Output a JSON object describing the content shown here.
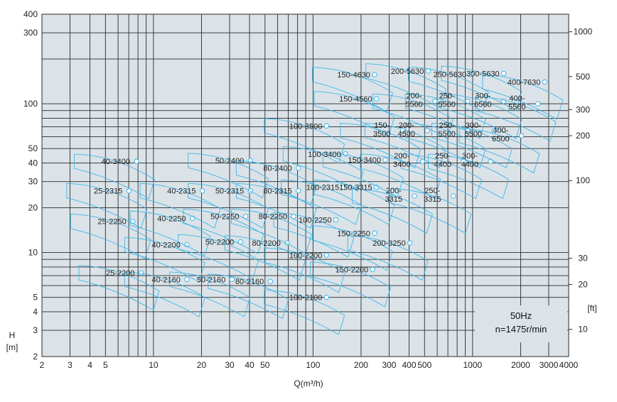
{
  "chart_data": {
    "type": "line",
    "x_scale": "log",
    "y_scale": "log",
    "xlim": [
      2,
      4000
    ],
    "ylim": [
      2,
      400
    ],
    "xlabel": "Q(m³/h)",
    "ylabel_top": "H",
    "ylabel_bottom": "[m]",
    "right_unit": "[ft]",
    "grid": true,
    "colors": {
      "plot_bg": "#dbe3e8",
      "grid": "#2a2a2a",
      "curve": "#3fb6e6",
      "text": "#222222"
    },
    "x_ticks": [
      {
        "v": 2,
        "t": "2"
      },
      {
        "v": 3,
        "t": "3"
      },
      {
        "v": 4,
        "t": "4"
      },
      {
        "v": 5,
        "t": "5"
      },
      {
        "v": 10,
        "t": "10"
      },
      {
        "v": 20,
        "t": "20"
      },
      {
        "v": 30,
        "t": "30"
      },
      {
        "v": 40,
        "t": "40"
      },
      {
        "v": 50,
        "t": "50"
      },
      {
        "v": 100,
        "t": "100"
      },
      {
        "v": 200,
        "t": "200"
      },
      {
        "v": 300,
        "t": "300"
      },
      {
        "v": 400,
        "t": "400"
      },
      {
        "v": 500,
        "t": "500"
      },
      {
        "v": 1000,
        "t": "1000"
      },
      {
        "v": 2000,
        "t": "2000"
      },
      {
        "v": 3000,
        "t": "3000"
      },
      {
        "v": 4000,
        "t": "4000"
      }
    ],
    "y_ticks_left": [
      {
        "v": 2,
        "t": "2"
      },
      {
        "v": 3,
        "t": "3"
      },
      {
        "v": 4,
        "t": "4"
      },
      {
        "v": 5,
        "t": "5"
      },
      {
        "v": 10,
        "t": "10"
      },
      {
        "v": 20,
        "t": "20"
      },
      {
        "v": 30,
        "t": "30"
      },
      {
        "v": 40,
        "t": "40"
      },
      {
        "v": 50,
        "t": "50"
      },
      {
        "v": 100,
        "t": "100"
      },
      {
        "v": 300,
        "t": "300"
      },
      {
        "v": 400,
        "t": "400"
      }
    ],
    "y_ticks_right_ft": [
      {
        "v": 10,
        "t": "10"
      },
      {
        "v": 20,
        "t": "20"
      },
      {
        "v": 30,
        "t": "30"
      },
      {
        "v": 100,
        "t": "100"
      },
      {
        "v": 200,
        "t": "200"
      },
      {
        "v": 300,
        "t": "300"
      },
      {
        "v": 500,
        "t": "500"
      },
      {
        "v": 1000,
        "t": "1000"
      }
    ],
    "info_box": {
      "line1": "50Hz",
      "line2": "n=1475r/min"
    },
    "pump_models": [
      {
        "name": "25-2200",
        "lx": 6.2,
        "ly": 7.3
      },
      {
        "name": "25-2250",
        "lx": 5.5,
        "ly": 16.2
      },
      {
        "name": "25-2315",
        "lx": 5.2,
        "ly": 26.0
      },
      {
        "name": "40-3400",
        "lx": 5.8,
        "ly": 41.0
      },
      {
        "name": "40-2160",
        "lx": 12.0,
        "ly": 6.6
      },
      {
        "name": "40-2200",
        "lx": 12.0,
        "ly": 11.3
      },
      {
        "name": "40-2250",
        "lx": 13.0,
        "ly": 17.0
      },
      {
        "name": "40-2315",
        "lx": 15.0,
        "ly": 26.0
      },
      {
        "name": "50-2160",
        "lx": 23.0,
        "ly": 6.6
      },
      {
        "name": "50-2200",
        "lx": 26.0,
        "ly": 11.8
      },
      {
        "name": "50-2250",
        "lx": 28.0,
        "ly": 17.5
      },
      {
        "name": "50-2315",
        "lx": 30.0,
        "ly": 26.0
      },
      {
        "name": "50-2400",
        "lx": 30.0,
        "ly": 41.5
      },
      {
        "name": "80-2160",
        "lx": 40.0,
        "ly": 6.4
      },
      {
        "name": "80-2200",
        "lx": 51.0,
        "ly": 11.6
      },
      {
        "name": "80-2250",
        "lx": 56.0,
        "ly": 17.5
      },
      {
        "name": "80-2315",
        "lx": 60.0,
        "ly": 26.0
      },
      {
        "name": "80-2400",
        "lx": 60.0,
        "ly": 37.0
      },
      {
        "name": "100-2100",
        "lx": 90.0,
        "ly": 5.0
      },
      {
        "name": "100-2200",
        "lx": 90.0,
        "ly": 9.6
      },
      {
        "name": "100-2250",
        "lx": 103.0,
        "ly": 16.6
      },
      {
        "name": "100-2315",
        "lx": 115.0,
        "ly": 27.5
      },
      {
        "name": "100-3400",
        "lx": 118.0,
        "ly": 46.0
      },
      {
        "name": "100-3500",
        "lx": 90.0,
        "ly": 71.0
      },
      {
        "name": "150-2200",
        "lx": 175.0,
        "ly": 7.7
      },
      {
        "name": "150-2250",
        "lx": 180.0,
        "ly": 13.5
      },
      {
        "name": "150-3315",
        "lx": 185.0,
        "ly": 27.5
      },
      {
        "name": "150-3400",
        "lx": 210.0,
        "ly": 42.0
      },
      {
        "name": "150-4560",
        "lx": 185.0,
        "ly": 108.0
      },
      {
        "name": "150-4630",
        "lx": 180.0,
        "ly": 157.0
      },
      {
        "name": "200-3250",
        "lx": 300.0,
        "ly": 11.6
      },
      {
        "name": "200-\n3315",
        "lx": 320.0,
        "ly": 24.0
      },
      {
        "name": "200-\n3400",
        "lx": 360.0,
        "ly": 41.0
      },
      {
        "name": "200-\n4500",
        "lx": 385.0,
        "ly": 66.0
      },
      {
        "name": "200-\n5560",
        "lx": 430.0,
        "ly": 104.0
      },
      {
        "name": "200-5630",
        "lx": 390.0,
        "ly": 166.0
      },
      {
        "name": "150-\n3500",
        "lx": 270.0,
        "ly": 66.0
      },
      {
        "name": "250-\n3315",
        "lx": 560.0,
        "ly": 24.0
      },
      {
        "name": "250-\n4400",
        "lx": 650.0,
        "ly": 41.0
      },
      {
        "name": "250-\n5500",
        "lx": 690.0,
        "ly": 66.0
      },
      {
        "name": "250-\n5560",
        "lx": 690.0,
        "ly": 104.0
      },
      {
        "name": "250-5630",
        "lx": 720.0,
        "ly": 158.0
      },
      {
        "name": "300-\n4400",
        "lx": 960.0,
        "ly": 41.0
      },
      {
        "name": "300-\n5500",
        "lx": 1010.0,
        "ly": 66.0
      },
      {
        "name": "300-\n6560",
        "lx": 1160.0,
        "ly": 104.0
      },
      {
        "name": "300-5630",
        "lx": 1160.0,
        "ly": 160.0
      },
      {
        "name": "400-\n5560",
        "lx": 1900.0,
        "ly": 100.0
      },
      {
        "name": "400-\n6500",
        "lx": 1500.0,
        "ly": 61.0
      },
      {
        "name": "400-7630",
        "lx": 2100.0,
        "ly": 140.0
      }
    ]
  }
}
